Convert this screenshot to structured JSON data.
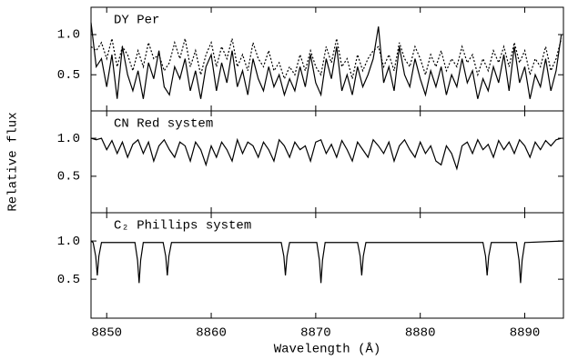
{
  "chart_data": [
    {
      "type": "line",
      "title": "DY Per",
      "xlim": [
        8848.5,
        8893.7
      ],
      "ylim": [
        0.05,
        1.34
      ],
      "yticks": [
        0.5,
        {
          "value": 1,
          "label": "1.0"
        }
      ],
      "x": [
        8848.5,
        8849,
        8849.5,
        8850,
        8850.5,
        8851,
        8851.5,
        8852,
        8852.5,
        8853,
        8853.5,
        8854,
        8854.5,
        8855,
        8855.5,
        8856,
        8856.5,
        8857,
        8857.5,
        8858,
        8858.5,
        8859,
        8859.5,
        8860,
        8860.5,
        8861,
        8861.5,
        8862,
        8862.5,
        8863,
        8863.5,
        8864,
        8864.5,
        8865,
        8865.5,
        8866,
        8866.5,
        8867,
        8867.5,
        8868,
        8868.5,
        8869,
        8869.5,
        8870,
        8870.5,
        8871,
        8871.5,
        8872,
        8872.5,
        8873,
        8873.5,
        8874,
        8874.5,
        8875,
        8875.5,
        8876,
        8876.5,
        8877,
        8877.5,
        8878,
        8878.5,
        8879,
        8879.5,
        8880,
        8880.5,
        8881,
        8881.5,
        8882,
        8882.5,
        8883,
        8883.5,
        8884,
        8884.5,
        8885,
        8885.5,
        8886,
        8886.5,
        8887,
        8887.5,
        8888,
        8888.5,
        8889,
        8889.5,
        8890,
        8890.5,
        8891,
        8891.5,
        8892,
        8892.5,
        8893,
        8893.5
      ],
      "series": [
        {
          "color": "#000000",
          "style": "solid",
          "values": [
            1.15,
            0.6,
            0.7,
            0.35,
            0.75,
            0.2,
            0.85,
            0.5,
            0.3,
            0.55,
            0.2,
            0.65,
            0.45,
            0.8,
            0.35,
            0.25,
            0.6,
            0.45,
            0.7,
            0.3,
            0.55,
            0.2,
            0.6,
            0.75,
            0.3,
            0.65,
            0.4,
            0.8,
            0.35,
            0.55,
            0.25,
            0.7,
            0.45,
            0.3,
            0.6,
            0.35,
            0.5,
            0.25,
            0.45,
            0.3,
            0.6,
            0.35,
            0.75,
            0.4,
            0.25,
            0.7,
            0.45,
            0.85,
            0.3,
            0.5,
            0.25,
            0.6,
            0.35,
            0.5,
            0.7,
            1.1,
            0.4,
            0.6,
            0.3,
            0.85,
            0.5,
            0.35,
            0.7,
            0.45,
            0.25,
            0.55,
            0.35,
            0.6,
            0.25,
            0.5,
            0.35,
            0.7,
            0.4,
            0.55,
            0.2,
            0.45,
            0.3,
            0.6,
            0.4,
            0.75,
            0.3,
            0.85,
            0.4,
            0.6,
            0.2,
            0.5,
            0.35,
            0.7,
            0.3,
            0.55,
            1.0
          ]
        },
        {
          "color": "#000000",
          "style": "dotted",
          "values": [
            0.85,
            0.8,
            0.9,
            0.7,
            0.95,
            0.6,
            0.85,
            0.75,
            0.55,
            0.8,
            0.6,
            0.9,
            0.7,
            0.75,
            0.55,
            0.65,
            0.9,
            0.7,
            0.95,
            0.6,
            0.8,
            0.5,
            0.75,
            0.9,
            0.6,
            0.85,
            0.7,
            0.95,
            0.6,
            0.75,
            0.55,
            0.9,
            0.7,
            0.6,
            0.8,
            0.55,
            0.65,
            0.45,
            0.6,
            0.5,
            0.75,
            0.55,
            0.8,
            0.6,
            0.5,
            0.85,
            0.65,
            0.95,
            0.6,
            0.7,
            0.45,
            0.75,
            0.55,
            0.7,
            0.8,
            0.85,
            0.6,
            0.75,
            0.55,
            0.9,
            0.7,
            0.6,
            0.85,
            0.7,
            0.5,
            0.75,
            0.6,
            0.8,
            0.55,
            0.7,
            0.6,
            0.85,
            0.65,
            0.75,
            0.5,
            0.7,
            0.55,
            0.8,
            0.65,
            0.85,
            0.6,
            0.9,
            0.65,
            0.8,
            0.5,
            0.7,
            0.6,
            0.85,
            0.55,
            0.7,
            0.95
          ]
        }
      ]
    },
    {
      "type": "line",
      "title": "CN Red system",
      "ylabel": "Relative flux",
      "xlim": [
        8848.5,
        8893.7
      ],
      "ylim": [
        0.02,
        1.36
      ],
      "yticks": [
        0.5,
        {
          "value": 1,
          "label": "1.0"
        }
      ],
      "x": [
        8848.5,
        8849,
        8849.5,
        8850,
        8850.5,
        8851,
        8851.5,
        8852,
        8852.5,
        8853,
        8853.5,
        8854,
        8854.5,
        8855,
        8855.5,
        8856,
        8856.5,
        8857,
        8857.5,
        8858,
        8858.5,
        8859,
        8859.5,
        8860,
        8860.5,
        8861,
        8861.5,
        8862,
        8862.5,
        8863,
        8863.5,
        8864,
        8864.5,
        8865,
        8865.5,
        8866,
        8866.5,
        8867,
        8867.5,
        8868,
        8868.5,
        8869,
        8869.5,
        8870,
        8870.5,
        8871,
        8871.5,
        8872,
        8872.5,
        8873,
        8873.5,
        8874,
        8874.5,
        8875,
        8875.5,
        8876,
        8876.5,
        8877,
        8877.5,
        8878,
        8878.5,
        8879,
        8879.5,
        8880,
        8880.5,
        8881,
        8881.5,
        8882,
        8882.5,
        8883,
        8883.5,
        8884,
        8884.5,
        8885,
        8885.5,
        8886,
        8886.5,
        8887,
        8887.5,
        8888,
        8888.5,
        8889,
        8889.5,
        8890,
        8890.5,
        8891,
        8891.5,
        8892,
        8892.5,
        8893,
        8893.5
      ],
      "series": [
        {
          "color": "#000000",
          "style": "solid",
          "values": [
            1.0,
            0.98,
            1.0,
            0.85,
            0.97,
            0.8,
            0.95,
            0.75,
            0.92,
            0.98,
            0.8,
            0.95,
            0.7,
            0.9,
            0.98,
            0.85,
            0.75,
            0.95,
            0.9,
            0.7,
            0.95,
            0.85,
            0.65,
            0.9,
            0.75,
            0.95,
            0.85,
            0.7,
            0.98,
            0.8,
            0.95,
            0.9,
            0.75,
            0.95,
            0.85,
            0.7,
            0.98,
            0.9,
            0.75,
            0.95,
            0.85,
            0.9,
            0.7,
            0.95,
            0.98,
            0.8,
            0.92,
            0.75,
            0.97,
            0.85,
            0.7,
            0.95,
            0.85,
            0.75,
            0.98,
            0.9,
            0.8,
            0.95,
            0.7,
            0.9,
            0.98,
            0.85,
            0.75,
            0.95,
            0.8,
            0.9,
            0.7,
            0.65,
            0.9,
            0.8,
            0.6,
            0.9,
            0.95,
            0.8,
            0.98,
            0.85,
            0.92,
            0.75,
            0.97,
            0.85,
            0.95,
            0.8,
            0.98,
            0.9,
            0.75,
            0.95,
            0.85,
            0.97,
            0.9,
            0.98,
            1.0
          ]
        }
      ]
    },
    {
      "type": "line",
      "title": "C₂ Phillips system",
      "xlabel": "Wavelength (Å)",
      "xlim": [
        8848.5,
        8893.7
      ],
      "ylim": [
        -0.01,
        1.37
      ],
      "yticks": [
        0.5,
        {
          "value": 1,
          "label": "1.0"
        }
      ],
      "xticks": [
        8850,
        8860,
        8870,
        8880,
        8890
      ],
      "x": [
        8848.5,
        8848.7,
        8848.95,
        8849.1,
        8849.25,
        8849.5,
        8852.7,
        8852.95,
        8853.1,
        8853.25,
        8853.5,
        8855.4,
        8855.65,
        8855.8,
        8855.95,
        8856.2,
        8866.7,
        8866.95,
        8867.1,
        8867.25,
        8867.5,
        8870.1,
        8870.35,
        8870.5,
        8870.65,
        8870.9,
        8874,
        8874.25,
        8874.4,
        8874.55,
        8874.8,
        8886,
        8886.25,
        8886.4,
        8886.55,
        8886.8,
        8889.2,
        8889.45,
        8889.6,
        8889.75,
        8890,
        8893.6
      ],
      "series": [
        {
          "color": "#000000",
          "style": "solid",
          "values": [
            1.0,
            0.98,
            0.8,
            0.55,
            0.8,
            0.98,
            0.98,
            0.75,
            0.45,
            0.75,
            0.98,
            0.98,
            0.8,
            0.55,
            0.8,
            0.98,
            0.98,
            0.8,
            0.55,
            0.8,
            0.98,
            0.98,
            0.75,
            0.45,
            0.75,
            0.98,
            0.98,
            0.8,
            0.55,
            0.8,
            0.98,
            0.98,
            0.8,
            0.55,
            0.8,
            0.98,
            0.98,
            0.75,
            0.45,
            0.75,
            0.98,
            1.0
          ]
        }
      ]
    }
  ]
}
